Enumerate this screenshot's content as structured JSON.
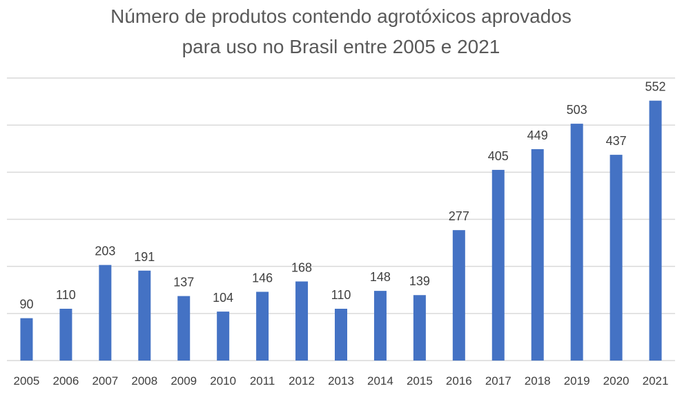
{
  "chart_data": {
    "type": "bar",
    "title_line1": "Número de produtos contendo agrotóxicos aprovados",
    "title_line2": "para uso no Brasil entre 2005 e 2021",
    "xlabel": "",
    "ylabel": "",
    "categories": [
      "2005",
      "2006",
      "2007",
      "2008",
      "2009",
      "2010",
      "2011",
      "2012",
      "2013",
      "2014",
      "2015",
      "2016",
      "2017",
      "2018",
      "2019",
      "2020",
      "2021"
    ],
    "values": [
      90,
      110,
      203,
      191,
      137,
      104,
      146,
      168,
      110,
      148,
      139,
      277,
      405,
      449,
      503,
      437,
      552
    ],
    "ylim": [
      0,
      600
    ],
    "grid": true,
    "legend": "none",
    "bar_color": "#4472C4",
    "grid_color": "#D9D9D9"
  }
}
